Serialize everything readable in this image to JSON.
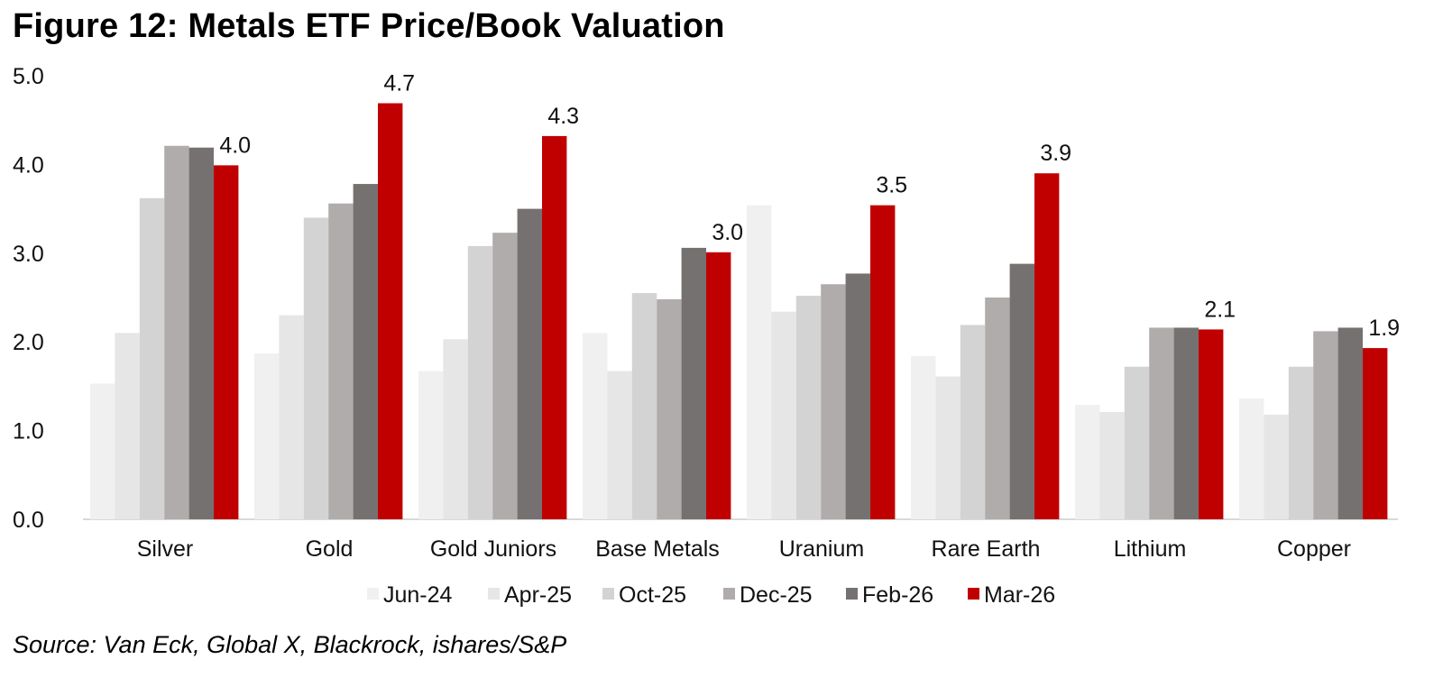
{
  "title": "Figure 12: Metals ETF Price/Book Valuation",
  "source": "Source: Van Eck, Global X, Blackrock, ishares/S&P",
  "chart_data": {
    "type": "bar",
    "title": "Figure 12: Metals ETF Price/Book Valuation",
    "xlabel": "",
    "ylabel": "",
    "ylim": [
      0,
      5
    ],
    "yticks": [
      "0.0",
      "1.0",
      "2.0",
      "3.0",
      "4.0",
      "5.0"
    ],
    "grid": false,
    "legend_position": "bottom",
    "categories": [
      "Silver",
      "Gold",
      "Gold Juniors",
      "Base Metals",
      "Uranium",
      "Rare Earth",
      "Lithium",
      "Copper"
    ],
    "series": [
      {
        "name": "Jun-24",
        "color": "#f0f0f0",
        "values": [
          1.53,
          1.87,
          1.67,
          2.1,
          3.54,
          1.84,
          1.29,
          1.36
        ]
      },
      {
        "name": "Apr-25",
        "color": "#e6e6e6",
        "values": [
          2.1,
          2.3,
          2.03,
          1.67,
          2.34,
          1.61,
          1.21,
          1.18
        ]
      },
      {
        "name": "Oct-25",
        "color": "#d3d3d3",
        "values": [
          3.62,
          3.4,
          3.08,
          2.55,
          2.52,
          2.19,
          1.72,
          1.72
        ]
      },
      {
        "name": "Dec-25",
        "color": "#b0acab",
        "values": [
          4.21,
          3.56,
          3.23,
          2.48,
          2.65,
          2.5,
          2.16,
          2.12
        ]
      },
      {
        "name": "Feb-26",
        "color": "#767171",
        "values": [
          4.19,
          3.78,
          3.5,
          3.06,
          2.77,
          2.88,
          2.16,
          2.16
        ]
      },
      {
        "name": "Mar-26",
        "color": "#c00000",
        "values": [
          3.99,
          4.69,
          4.32,
          3.01,
          3.54,
          3.9,
          2.14,
          1.93
        ],
        "labels": [
          "4.0",
          "4.7",
          "4.3",
          "3.0",
          "3.5",
          "3.9",
          "2.1",
          "1.9"
        ]
      }
    ]
  }
}
